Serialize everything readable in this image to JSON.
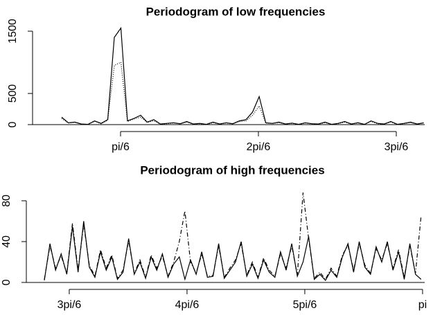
{
  "chart_data": [
    {
      "type": "line",
      "title": "Periodogram of low frequencies",
      "x": [
        0.3,
        0.325,
        0.35,
        0.375,
        0.4,
        0.425,
        0.45,
        0.475,
        0.5,
        0.525,
        0.55,
        0.575,
        0.6,
        0.625,
        0.65,
        0.675,
        0.7,
        0.725,
        0.75,
        0.775,
        0.8,
        0.825,
        0.85,
        0.875,
        0.9,
        0.925,
        0.95,
        0.975,
        1.0,
        1.025,
        1.05,
        1.075,
        1.1,
        1.125,
        1.15,
        1.175,
        1.2,
        1.225,
        1.25,
        1.275,
        1.3,
        1.325,
        1.35,
        1.375,
        1.4,
        1.425,
        1.45,
        1.475,
        1.5,
        1.525,
        1.55,
        1.575,
        1.6,
        1.625,
        1.65,
        1.675
      ],
      "series": [
        {
          "color": "#000000",
          "dash": "none",
          "values": [
            120,
            30,
            40,
            10,
            5,
            60,
            20,
            80,
            1400,
            1550,
            60,
            100,
            150,
            40,
            80,
            10,
            20,
            30,
            15,
            50,
            10,
            20,
            5,
            40,
            10,
            30,
            15,
            60,
            80,
            200,
            450,
            30,
            20,
            40,
            10,
            25,
            5,
            30,
            15,
            10,
            40,
            5,
            20,
            50,
            10,
            30,
            5,
            60,
            20,
            10,
            50,
            5,
            20,
            40,
            10,
            30
          ]
        },
        {
          "color": "#000000",
          "dash": "1,2",
          "values": [
            100,
            25,
            35,
            8,
            5,
            50,
            15,
            70,
            950,
            1000,
            50,
            90,
            120,
            35,
            60,
            8,
            15,
            25,
            12,
            40,
            8,
            15,
            4,
            30,
            8,
            25,
            12,
            50,
            60,
            150,
            300,
            25,
            15,
            30,
            8,
            20,
            4,
            25,
            12,
            8,
            30,
            4,
            15,
            40,
            8,
            25,
            4,
            50,
            15,
            8,
            40,
            4,
            15,
            30,
            8,
            25
          ]
        }
      ],
      "xlim": [
        0.1895,
        1.6787
      ],
      "xticks": [
        {
          "value": 0.5236,
          "label": "pi/6"
        },
        {
          "value": 1.0472,
          "label": "2pi/6"
        },
        {
          "value": 1.5708,
          "label": "3pi/6"
        }
      ],
      "ylim": [
        -111,
        1556
      ],
      "yticks": [
        0,
        500,
        1500
      ]
    },
    {
      "type": "line",
      "title": "Periodogram of high frequencies",
      "x": [
        1.46,
        1.485,
        1.51,
        1.535,
        1.56,
        1.585,
        1.61,
        1.635,
        1.66,
        1.685,
        1.71,
        1.735,
        1.76,
        1.785,
        1.81,
        1.835,
        1.86,
        1.885,
        1.91,
        1.935,
        1.96,
        1.985,
        2.01,
        2.035,
        2.06,
        2.085,
        2.11,
        2.135,
        2.16,
        2.185,
        2.21,
        2.235,
        2.26,
        2.285,
        2.31,
        2.335,
        2.36,
        2.385,
        2.41,
        2.435,
        2.46,
        2.485,
        2.51,
        2.535,
        2.56,
        2.585,
        2.61,
        2.635,
        2.66,
        2.685,
        2.71,
        2.735,
        2.76,
        2.785,
        2.81,
        2.835,
        2.86,
        2.885,
        2.91,
        2.935,
        2.96,
        2.985,
        3.01,
        3.035,
        3.06,
        3.085,
        3.11,
        3.135
      ],
      "series": [
        {
          "color": "#000000",
          "dash": "none",
          "values": [
            2,
            38,
            12,
            28,
            8,
            55,
            10,
            60,
            15,
            5,
            30,
            12,
            25,
            3,
            10,
            43,
            8,
            20,
            4,
            25,
            12,
            28,
            5,
            18,
            25,
            3,
            22,
            8,
            30,
            5,
            6,
            38,
            4,
            12,
            20,
            40,
            6,
            18,
            4,
            22,
            10,
            5,
            30,
            12,
            38,
            6,
            20,
            45,
            3,
            8,
            2,
            12,
            5,
            25,
            38,
            10,
            40,
            15,
            8,
            35,
            20,
            40,
            12,
            30,
            3,
            38,
            8,
            3
          ]
        },
        {
          "color": "#000000",
          "dash": "6,3,1,3",
          "values": [
            3,
            36,
            14,
            26,
            9,
            58,
            12,
            57,
            17,
            6,
            32,
            14,
            27,
            4,
            12,
            41,
            9,
            22,
            5,
            27,
            14,
            26,
            6,
            20,
            40,
            70,
            20,
            9,
            28,
            6,
            7,
            36,
            5,
            14,
            22,
            38,
            7,
            20,
            5,
            24,
            12,
            6,
            28,
            14,
            36,
            7,
            88,
            43,
            4,
            10,
            3,
            14,
            6,
            27,
            36,
            12,
            38,
            17,
            9,
            33,
            22,
            38,
            14,
            32,
            5,
            36,
            9,
            65
          ]
        }
      ],
      "xlim": [
        1.38,
        3.151
      ],
      "xticks": [
        {
          "value": 1.5708,
          "label": "3pi/6"
        },
        {
          "value": 2.0944,
          "label": "4pi/6"
        },
        {
          "value": 2.618,
          "label": "5pi/6"
        },
        {
          "value": 3.1416,
          "label": "pi"
        }
      ],
      "ylim": [
        -6.8,
        98.3
      ],
      "yticks": [
        0,
        40,
        80
      ]
    }
  ]
}
